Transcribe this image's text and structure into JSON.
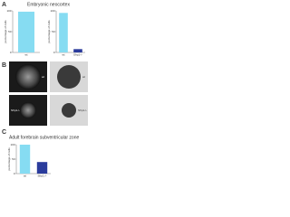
{
  "panels": [
    {
      "label": "A",
      "title": "Embryonic neocortex"
    },
    {
      "label": "B",
      "images": [
        "wt",
        "wt",
        "Sfrp1-/-",
        "Sfrp1-/-"
      ]
    },
    {
      "label": "C",
      "title": "Adult forebrain subventricular zone"
    }
  ],
  "chart_data": [
    {
      "type": "bar",
      "y_label": "percentage of cells",
      "categories": [
        "wt"
      ],
      "values": [
        98
      ],
      "colors": [
        "#86dcf2"
      ],
      "ylim": [
        0,
        100
      ],
      "yticks": [
        0,
        50,
        100
      ]
    },
    {
      "type": "bar",
      "y_label": "percentage of cells",
      "categories": [
        "wt",
        "Sfrp1-/-"
      ],
      "values": [
        95,
        8
      ],
      "colors": [
        "#86dcf2",
        "#2b3c9c"
      ],
      "ylim": [
        0,
        100
      ],
      "yticks": [
        0,
        50,
        100
      ]
    },
    {
      "type": "bar",
      "y_label": "percentage of cells",
      "categories": [
        "wt",
        "Sfrp1-/-"
      ],
      "values": [
        100,
        40
      ],
      "colors": [
        "#86dcf2",
        "#2b3c9c"
      ],
      "ylim": [
        0,
        100
      ],
      "yticks": [
        0,
        50,
        100
      ]
    }
  ]
}
